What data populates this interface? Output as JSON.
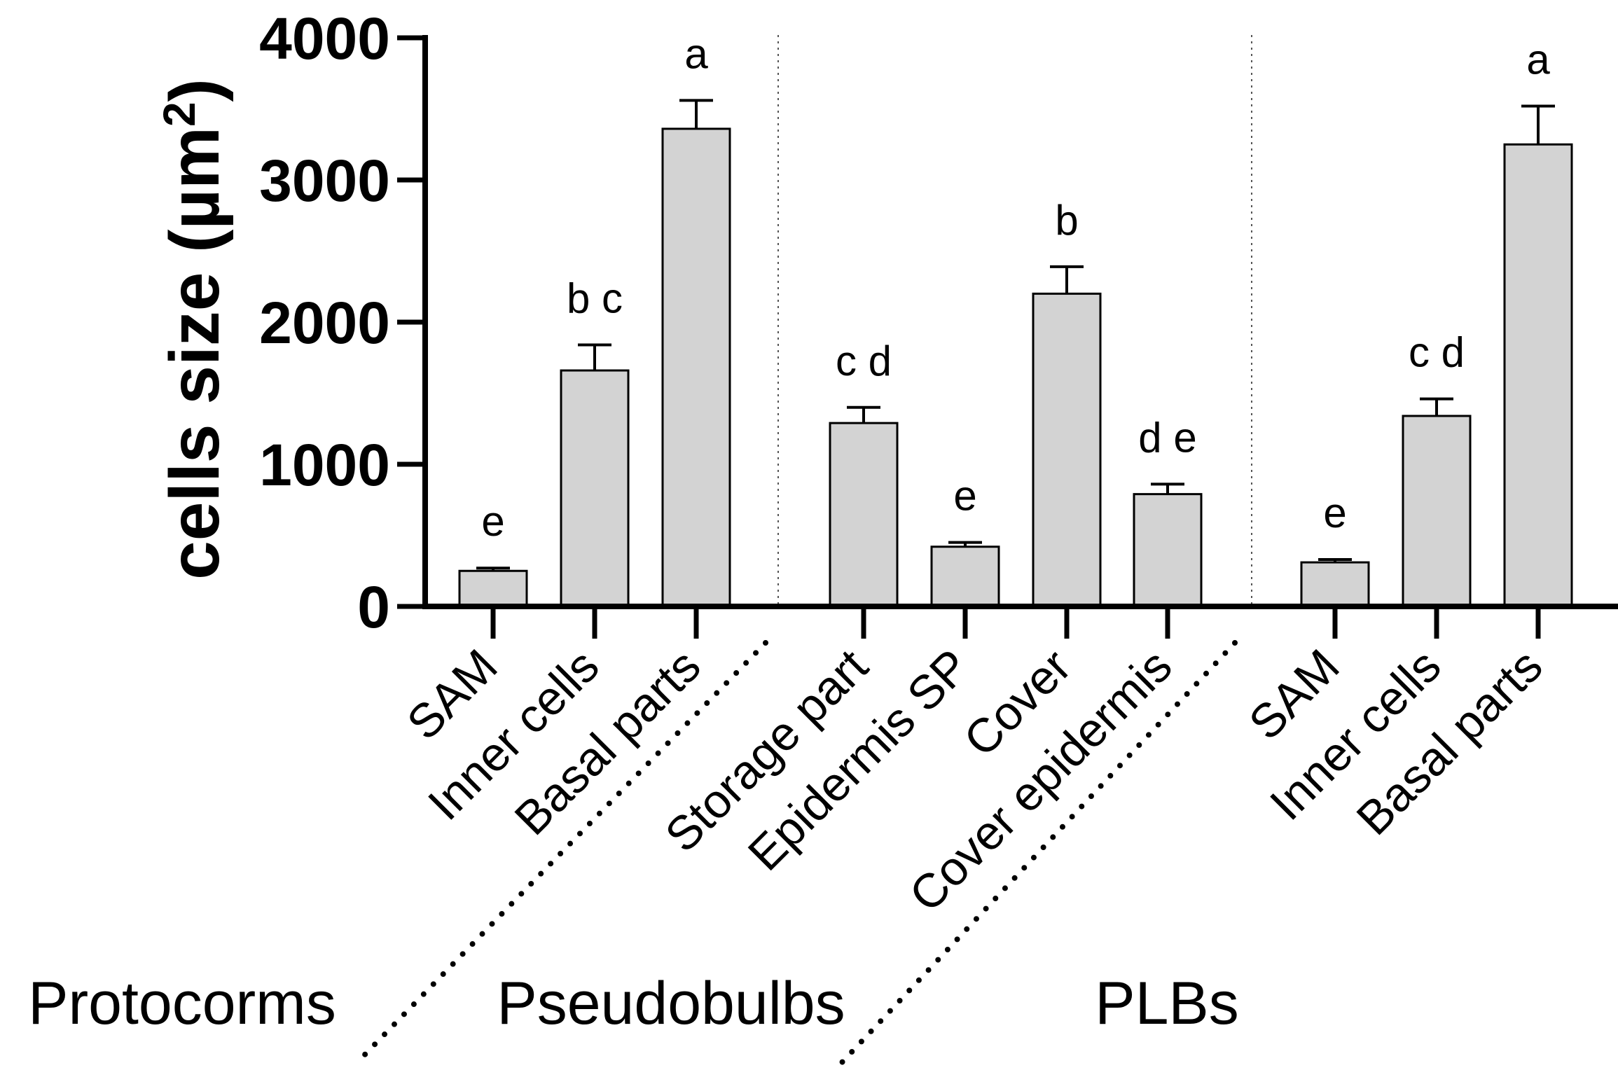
{
  "chart_data": {
    "type": "bar",
    "title": "",
    "xlabel": "",
    "ylabel": "cells size (µm",
    "ylabel_superscript": "2",
    "ylabel_suffix": ")",
    "ylim": [
      0,
      4000
    ],
    "yticks": [
      0,
      1000,
      2000,
      3000,
      4000
    ],
    "grid": false,
    "bar_color": "#d3d3d3",
    "groups": [
      {
        "name": "Protocorms",
        "first": 0,
        "last": 2
      },
      {
        "name": "Pseudobulbs",
        "first": 3,
        "last": 6
      },
      {
        "name": "PLBs",
        "first": 7,
        "last": 9
      }
    ],
    "bars": [
      {
        "category": "SAM",
        "value": 250,
        "error": 20,
        "letters": "e"
      },
      {
        "category": "Inner cells",
        "value": 1660,
        "error": 180,
        "letters": "b c"
      },
      {
        "category": "Basal parts",
        "value": 3360,
        "error": 200,
        "letters": "a"
      },
      {
        "category": "Storage part",
        "value": 1290,
        "error": 110,
        "letters": "c d"
      },
      {
        "category": "Epidermis SP",
        "value": 420,
        "error": 30,
        "letters": "e"
      },
      {
        "category": "Cover",
        "value": 2200,
        "error": 190,
        "letters": "b"
      },
      {
        "category": "Cover epidermis",
        "value": 790,
        "error": 70,
        "letters": "d e"
      },
      {
        "category": "SAM",
        "value": 310,
        "error": 20,
        "letters": "e"
      },
      {
        "category": "Inner cells",
        "value": 1340,
        "error": 120,
        "letters": "c d"
      },
      {
        "category": "Basal parts",
        "value": 3250,
        "error": 270,
        "letters": "a"
      }
    ]
  }
}
